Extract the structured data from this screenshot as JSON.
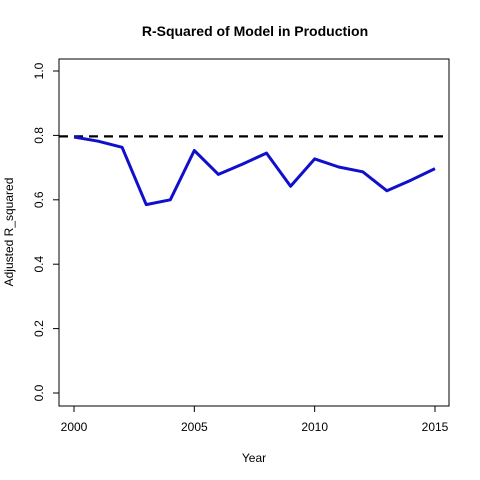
{
  "chart_data": {
    "type": "line",
    "title": "R-Squared of Model in Production",
    "xlabel": "Year",
    "ylabel": "Adjusted R_squared",
    "xlim": [
      2000,
      2015
    ],
    "ylim": [
      0,
      1
    ],
    "x_ticks": [
      2000,
      2005,
      2010,
      2015
    ],
    "y_ticks": [
      0.0,
      0.2,
      0.4,
      0.6,
      0.8,
      1.0
    ],
    "x_tick_labels": [
      "2000",
      "2005",
      "2010",
      "2015"
    ],
    "y_tick_labels": [
      "0.0",
      "0.2",
      "0.4",
      "0.6",
      "0.8",
      "1.0"
    ],
    "grid": false,
    "reference_line": {
      "y": 0.797,
      "style": "dashed",
      "color": "#000000"
    },
    "series": [
      {
        "color": "#1010cc",
        "x": [
          2000,
          2001,
          2002,
          2003,
          2004,
          2005,
          2006,
          2007,
          2008,
          2009,
          2010,
          2011,
          2012,
          2013,
          2014,
          2015
        ],
        "y": [
          0.795,
          0.782,
          0.763,
          0.585,
          0.6,
          0.753,
          0.679,
          0.711,
          0.745,
          0.642,
          0.727,
          0.702,
          0.687,
          0.628,
          0.661,
          0.697
        ]
      }
    ]
  }
}
